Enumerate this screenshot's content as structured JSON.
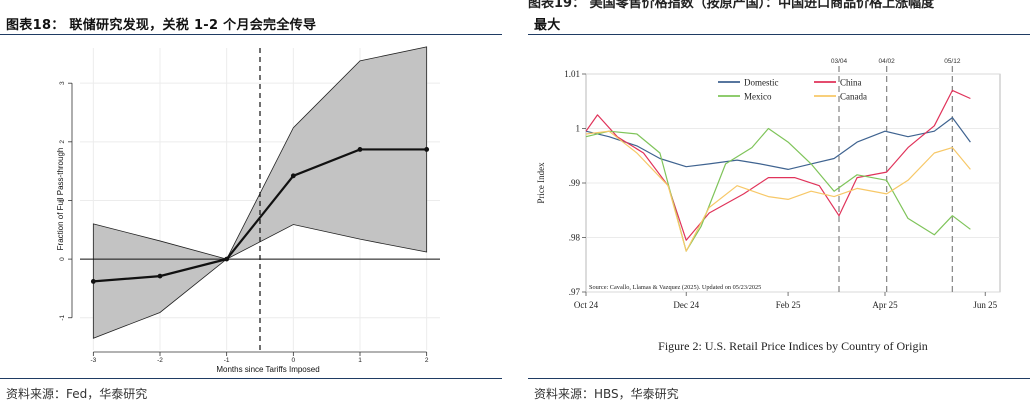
{
  "left_panel": {
    "header": "图表18： 联储研究发现，关税 1-2 个月会完全传导",
    "source": "资料来源：Fed，华泰研究"
  },
  "right_panel": {
    "header_partial": "图表19： 美国零售价格指数（按原产国）：中国进口商品价格上涨幅度",
    "header": "最大",
    "source": "资料来源：HBS，华泰研究"
  },
  "chart_data": [
    {
      "type": "line",
      "title": "",
      "xlabel": "Months since Tariffs Imposed",
      "ylabel": "Fraction of Full Pass-through",
      "x": [
        -3,
        -2,
        -1,
        0,
        1,
        2
      ],
      "xticks": [
        "-3",
        "-2",
        "-1",
        "0",
        "1",
        "2"
      ],
      "yticks": [
        -1,
        0,
        1,
        2,
        3
      ],
      "xlim": [
        -3.2,
        2.2
      ],
      "ylim": [
        -1.55,
        3.6
      ],
      "series": [
        {
          "values": [
            -0.38,
            -0.29,
            0,
            1.42,
            1.87,
            1.87
          ]
        }
      ],
      "band_upper": [
        0.6,
        0.31,
        0,
        2.24,
        3.38,
        3.62
      ],
      "band_lower": [
        -1.35,
        -0.91,
        0,
        0.59,
        0.34,
        0.12
      ],
      "vline_x": -0.5,
      "hline_y": 0,
      "grid": true,
      "colors": {
        "line": "#111111",
        "band": "#c3c3c3"
      }
    },
    {
      "type": "line",
      "title": "Figure 2: U.S. Retail Price Indices by Country of Origin",
      "xlabel": "",
      "ylabel": "Price Index",
      "xticks": [
        "Oct 24",
        "Dec 24",
        "Feb 25",
        "Apr 25",
        "Jun 25"
      ],
      "yticks": [
        ".97",
        ".98",
        ".99",
        "1",
        "1.01"
      ],
      "ylim": [
        0.97,
        1.01
      ],
      "xlim": [
        "2024-10-01",
        "2025-06-10"
      ],
      "vlines": [
        "03/04",
        "04/02",
        "05/12"
      ],
      "legend": {
        "position": "top",
        "columns": 2
      },
      "note": "Source: Cavallo, Llamas & Vazquez (2025). Updated on 05/23/2025",
      "grid": true,
      "series": [
        {
          "name": "Domestic",
          "color": "#3f6390",
          "x": [
            "2024-10-01",
            "2024-10-15",
            "2024-11-01",
            "2024-11-15",
            "2024-12-01",
            "2024-12-15",
            "2025-01-01",
            "2025-01-15",
            "2025-02-01",
            "2025-02-15",
            "2025-03-01",
            "2025-03-15",
            "2025-04-01",
            "2025-04-15",
            "2025-05-01",
            "2025-05-12",
            "2025-05-23"
          ],
          "values": [
            0.9995,
            0.9985,
            0.9968,
            0.9945,
            0.993,
            0.9935,
            0.9942,
            0.9935,
            0.9925,
            0.9935,
            0.9945,
            0.9975,
            0.9995,
            0.9985,
            0.9995,
            1.002,
            0.9975
          ]
        },
        {
          "name": "China",
          "color": "#e0335a",
          "x": [
            "2024-10-01",
            "2024-10-08",
            "2024-10-20",
            "2024-11-05",
            "2024-11-20",
            "2024-12-01",
            "2024-12-15",
            "2025-01-05",
            "2025-01-20",
            "2025-02-05",
            "2025-02-20",
            "2025-03-04",
            "2025-03-15",
            "2025-04-02",
            "2025-04-15",
            "2025-05-01",
            "2025-05-12",
            "2025-05-23"
          ],
          "values": [
            0.9995,
            1.0025,
            0.9985,
            0.9955,
            0.9895,
            0.9795,
            0.9845,
            0.988,
            0.991,
            0.991,
            0.9895,
            0.984,
            0.991,
            0.992,
            0.9965,
            1.0005,
            1.007,
            1.0055
          ]
        },
        {
          "name": "Mexico",
          "color": "#7fc45a",
          "x": [
            "2024-10-01",
            "2024-10-15",
            "2024-11-01",
            "2024-11-15",
            "2024-12-01",
            "2024-12-10",
            "2024-12-25",
            "2025-01-10",
            "2025-01-20",
            "2025-02-01",
            "2025-02-15",
            "2025-03-01",
            "2025-03-15",
            "2025-04-02",
            "2025-04-15",
            "2025-05-01",
            "2025-05-12",
            "2025-05-23"
          ],
          "values": [
            0.9985,
            0.9995,
            0.999,
            0.9955,
            0.9775,
            0.982,
            0.9935,
            0.9965,
            1.0,
            0.9975,
            0.9935,
            0.9885,
            0.9915,
            0.9905,
            0.9835,
            0.9805,
            0.984,
            0.9815
          ]
        },
        {
          "name": "Canada",
          "color": "#f7c868",
          "x": [
            "2024-10-01",
            "2024-10-15",
            "2024-11-01",
            "2024-11-20",
            "2024-12-01",
            "2024-12-15",
            "2025-01-01",
            "2025-01-20",
            "2025-02-01",
            "2025-02-15",
            "2025-03-01",
            "2025-03-15",
            "2025-04-02",
            "2025-04-15",
            "2025-05-01",
            "2025-05-12",
            "2025-05-23"
          ],
          "values": [
            0.999,
            0.9995,
            0.9955,
            0.9895,
            0.9775,
            0.9855,
            0.9895,
            0.9875,
            0.987,
            0.9885,
            0.9875,
            0.989,
            0.988,
            0.9905,
            0.9955,
            0.9965,
            0.9925
          ]
        }
      ]
    }
  ]
}
